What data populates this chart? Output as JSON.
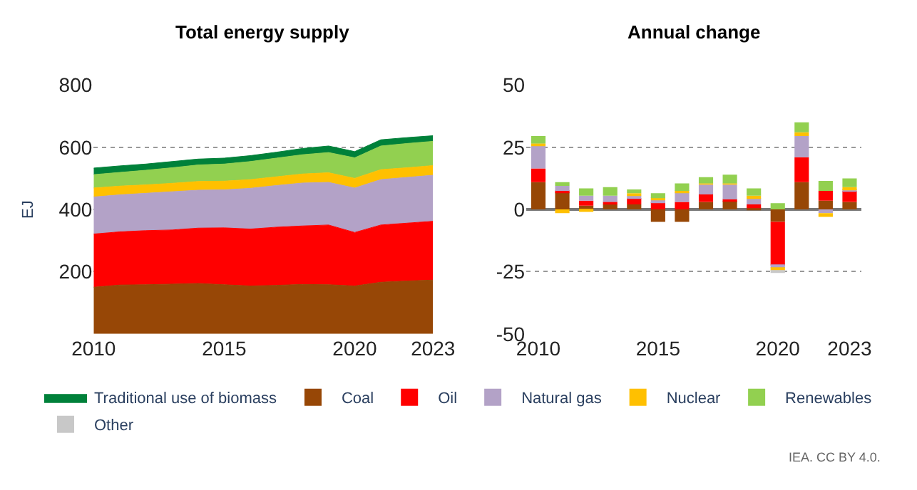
{
  "chart_data": [
    {
      "type": "area",
      "title": "Total energy supply",
      "ylabel": "EJ",
      "stacked": true,
      "x": [
        2010,
        2011,
        2012,
        2013,
        2014,
        2015,
        2016,
        2017,
        2018,
        2019,
        2020,
        2021,
        2022,
        2023
      ],
      "xlim": [
        2010,
        2023
      ],
      "xticks": [
        2010,
        2015,
        2020,
        2023
      ],
      "ylim": [
        0,
        800
      ],
      "yticks": [
        200,
        400,
        600,
        800
      ],
      "grid": "y",
      "legend": "bottom",
      "series": [
        {
          "name": "Coal",
          "color": "#974706",
          "values": [
            150,
            157,
            158,
            160,
            162,
            158,
            154,
            156,
            159,
            158,
            154,
            166,
            170,
            173
          ]
        },
        {
          "name": "Oil",
          "color": "#ff0000",
          "values": [
            171,
            171,
            174,
            174,
            178,
            183,
            183,
            187,
            188,
            192,
            172,
            184,
            186,
            189
          ]
        },
        {
          "name": "Natural gas",
          "color": "#b3a2c7",
          "values": [
            119,
            119,
            120,
            123,
            122,
            122,
            131,
            134,
            138,
            137,
            143,
            146,
            147,
            148
          ]
        },
        {
          "name": "Nuclear",
          "color": "#ffc000",
          "values": [
            29,
            28,
            27,
            27,
            28,
            28,
            28,
            28,
            29,
            31,
            31,
            32,
            31,
            31
          ]
        },
        {
          "name": "Renewables",
          "color": "#92d050",
          "values": [
            43,
            44,
            47,
            50,
            53,
            55,
            58,
            60,
            62,
            65,
            66,
            76,
            78,
            78
          ]
        },
        {
          "name": "Traditional use of biomass",
          "color": "#00813a",
          "values": [
            21,
            21,
            20,
            20,
            19,
            19,
            19,
            19,
            20,
            21,
            20,
            20,
            19,
            18
          ]
        }
      ]
    },
    {
      "type": "bar",
      "title": "Annual change",
      "stacked": true,
      "x": [
        2010,
        2011,
        2012,
        2013,
        2014,
        2015,
        2016,
        2017,
        2018,
        2019,
        2020,
        2021,
        2022,
        2023
      ],
      "xlim": [
        2009.5,
        2023.5
      ],
      "xticks": [
        2010,
        2015,
        2020,
        2023
      ],
      "ylim": [
        -50,
        50
      ],
      "yticks": [
        -50,
        -25,
        0,
        25,
        50
      ],
      "grid": "y",
      "legend": "bottom",
      "series": [
        {
          "name": "Coal",
          "color": "#974706",
          "values": [
            11,
            7,
            1.5,
            2,
            2,
            -5,
            -5,
            3,
            3.5,
            0.5,
            -5,
            11,
            3.5,
            3
          ]
        },
        {
          "name": "Oil",
          "color": "#ff0000",
          "values": [
            5.5,
            0.5,
            2,
            1,
            2.5,
            3,
            3,
            3,
            0.5,
            1.5,
            -17.5,
            10,
            4,
            4.5
          ]
        },
        {
          "name": "Natural gas",
          "color": "#b3a2c7",
          "values": [
            9,
            2,
            2,
            2.5,
            1,
            1,
            4,
            4,
            6,
            2.5,
            -1,
            8.5,
            -1.5,
            0.5
          ]
        },
        {
          "name": "Nuclear",
          "color": "#ffc000",
          "values": [
            1,
            -1.5,
            -1,
            null,
            1,
            0.5,
            0.5,
            0.5,
            0.5,
            1,
            -1,
            1.5,
            -1.5,
            1
          ]
        },
        {
          "name": "Renewables",
          "color": "#92d050",
          "values": [
            3,
            1.5,
            3,
            3.5,
            1.5,
            2,
            3,
            2.5,
            3.5,
            3,
            2.5,
            4,
            4,
            3.5
          ]
        },
        {
          "name": "Other",
          "color": "#c8c8c8",
          "values": [
            null,
            null,
            null,
            null,
            null,
            null,
            null,
            null,
            null,
            null,
            -1,
            null,
            null,
            null
          ]
        }
      ],
      "annotations": [
        "IEA. CC BY 4.0."
      ]
    }
  ]
}
